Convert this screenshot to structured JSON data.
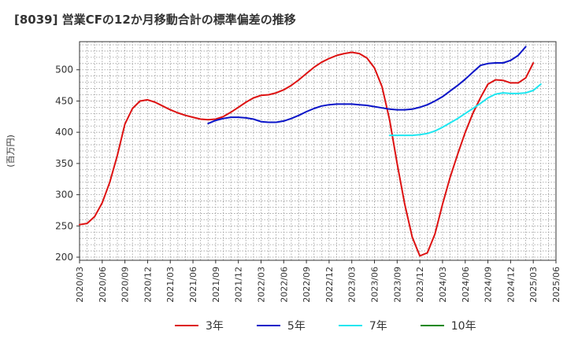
{
  "chart_data": {
    "type": "line",
    "title": "[8039]  営業CFの12か月移動合計の標準偏差の推移",
    "ylabel": "(百万円)",
    "xlabel": "",
    "ylim": [
      195,
      545
    ],
    "yticks": [
      200,
      250,
      300,
      350,
      400,
      450,
      500
    ],
    "xticks": [
      "2020/03",
      "2020/06",
      "2020/09",
      "2020/12",
      "2021/03",
      "2021/06",
      "2021/09",
      "2021/12",
      "2022/03",
      "2022/06",
      "2022/09",
      "2022/12",
      "2023/03",
      "2023/06",
      "2023/09",
      "2023/12",
      "2024/03",
      "2024/06",
      "2024/09",
      "2024/12",
      "2025/03",
      "2025/06"
    ],
    "grid": true,
    "legend_position": "bottom",
    "series": [
      {
        "name": "3年",
        "color": "#dd1111",
        "start": "2020/03",
        "values": [
          252,
          254,
          265,
          287,
          320,
          363,
          413,
          438,
          450,
          452,
          448,
          442,
          436,
          431,
          427,
          424,
          421,
          420,
          421,
          425,
          432,
          440,
          448,
          455,
          459,
          460,
          463,
          468,
          475,
          484,
          494,
          504,
          512,
          518,
          523,
          526,
          528,
          526,
          519,
          503,
          473,
          420,
          350,
          285,
          232,
          202,
          207,
          237,
          285,
          328,
          365,
          400,
          430,
          455,
          477,
          484,
          483,
          479,
          479,
          487,
          511
        ],
        "y_tick_labels_note": ""
      },
      {
        "name": "5年",
        "color": "#0a14c8",
        "start": "2021/08",
        "values": [
          414,
          419,
          422,
          424,
          424,
          423,
          421,
          417,
          416,
          416,
          418,
          422,
          427,
          433,
          438,
          442,
          444,
          445,
          445,
          445,
          444,
          443,
          441,
          439,
          437,
          436,
          436,
          437,
          440,
          444,
          450,
          457,
          466,
          475,
          485,
          496,
          507,
          510,
          511,
          511,
          515,
          523,
          537
        ]
      },
      {
        "name": "7年",
        "color": "#1ee6f0",
        "start": "2023/08",
        "values": [
          395,
          395,
          395,
          395,
          396,
          398,
          402,
          408,
          415,
          422,
          430,
          438,
          446,
          455,
          461,
          463,
          462,
          462,
          463,
          467,
          477
        ]
      },
      {
        "name": "10年",
        "color": "#118811",
        "start": "2025/03",
        "values": []
      }
    ]
  }
}
